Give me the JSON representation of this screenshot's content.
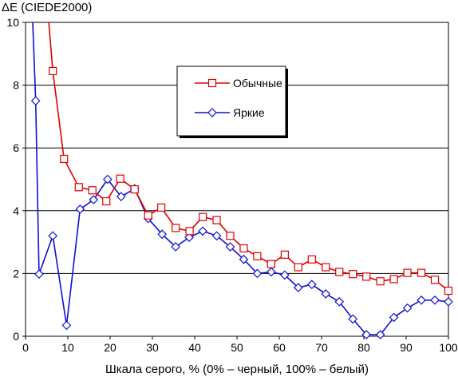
{
  "chart_data": {
    "type": "line",
    "title": "ΔE (CIEDE2000)",
    "xlabel": "Шкала серого, % (0% – черный, 100% – белый)",
    "ylabel": "",
    "xlim": [
      0,
      100
    ],
    "ylim": [
      0,
      10
    ],
    "x_ticks": [
      0,
      10,
      20,
      30,
      40,
      50,
      60,
      70,
      80,
      90,
      100
    ],
    "y_ticks": [
      0,
      2,
      4,
      6,
      8,
      10
    ],
    "x_tick_labels": [
      "0",
      "10",
      "20",
      "30",
      "40",
      "50",
      "60",
      "70",
      "80",
      "90",
      "100"
    ],
    "y_tick_labels": [
      "0",
      "2",
      "4",
      "6",
      "8",
      "10"
    ],
    "grid": "horizontal",
    "legend_position": "center-right",
    "series": [
      {
        "name": "Обычные",
        "color": "#e00000",
        "marker": "square",
        "points": [
          [
            5.5,
            10.0
          ],
          [
            6.45,
            8.45
          ],
          [
            9.1,
            5.65
          ],
          [
            12.6,
            4.75
          ],
          [
            15.8,
            4.65
          ],
          [
            19.1,
            4.3
          ],
          [
            22.4,
            5.02
          ],
          [
            25.8,
            4.68
          ],
          [
            29.0,
            3.85
          ],
          [
            32.1,
            4.1
          ],
          [
            35.5,
            3.45
          ],
          [
            38.8,
            3.35
          ],
          [
            41.9,
            3.8
          ],
          [
            45.2,
            3.7
          ],
          [
            48.4,
            3.2
          ],
          [
            51.6,
            2.8
          ],
          [
            54.8,
            2.55
          ],
          [
            58.1,
            2.3
          ],
          [
            61.3,
            2.6
          ],
          [
            64.5,
            2.2
          ],
          [
            67.7,
            2.45
          ],
          [
            71.0,
            2.2
          ],
          [
            74.2,
            2.05
          ],
          [
            77.4,
            1.98
          ],
          [
            80.6,
            1.9
          ],
          [
            83.9,
            1.75
          ],
          [
            87.1,
            1.82
          ],
          [
            90.3,
            2.02
          ],
          [
            93.6,
            2.02
          ],
          [
            96.8,
            1.8
          ],
          [
            100.0,
            1.45
          ]
        ]
      },
      {
        "name": "Яркие",
        "color": "#1010d0",
        "marker": "diamond",
        "points": [
          [
            1.7,
            10.0
          ],
          [
            2.4,
            7.5
          ],
          [
            3.2,
            1.98
          ],
          [
            6.45,
            3.2
          ],
          [
            9.7,
            0.35
          ],
          [
            12.9,
            4.05
          ],
          [
            16.1,
            4.35
          ],
          [
            19.4,
            5.0
          ],
          [
            22.6,
            4.45
          ],
          [
            25.8,
            4.7
          ],
          [
            29.0,
            3.75
          ],
          [
            32.3,
            3.25
          ],
          [
            35.5,
            2.85
          ],
          [
            38.7,
            3.15
          ],
          [
            41.9,
            3.35
          ],
          [
            45.2,
            3.2
          ],
          [
            48.4,
            2.85
          ],
          [
            51.6,
            2.45
          ],
          [
            54.8,
            2.0
          ],
          [
            58.1,
            2.05
          ],
          [
            61.3,
            1.95
          ],
          [
            64.5,
            1.55
          ],
          [
            67.7,
            1.65
          ],
          [
            71.0,
            1.35
          ],
          [
            74.2,
            1.1
          ],
          [
            77.4,
            0.55
          ],
          [
            80.6,
            0.05
          ],
          [
            83.9,
            0.05
          ],
          [
            87.1,
            0.6
          ],
          [
            90.3,
            0.9
          ],
          [
            93.6,
            1.15
          ],
          [
            96.8,
            1.15
          ],
          [
            100.0,
            1.1
          ]
        ]
      }
    ]
  }
}
